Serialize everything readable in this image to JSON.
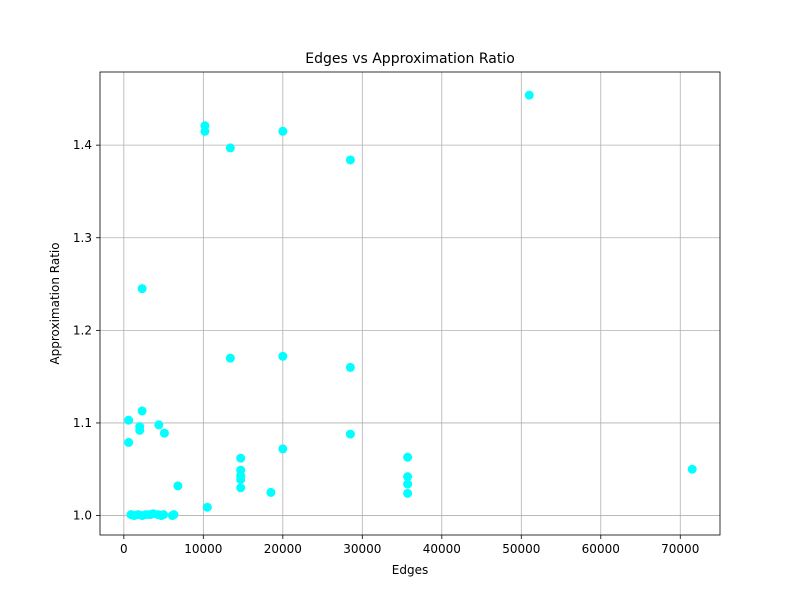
{
  "chart_data": {
    "type": "scatter",
    "title": "Edges vs Approximation Ratio",
    "xlabel": "Edges",
    "ylabel": "Approximation Ratio",
    "xlim": [
      -3000,
      75000
    ],
    "ylim": [
      0.979,
      1.479
    ],
    "xticks": [
      0,
      10000,
      20000,
      30000,
      40000,
      50000,
      60000,
      70000
    ],
    "yticks": [
      1.0,
      1.1,
      1.2,
      1.3,
      1.4
    ],
    "grid": true,
    "color": "#00ffff",
    "series": [
      {
        "x": [
          51000,
          10200,
          10200,
          20000,
          13400,
          28500,
          2300,
          13400,
          20000,
          28500,
          2300,
          600,
          4400,
          2000,
          2000,
          5100,
          600,
          28500,
          20000,
          35700,
          14700,
          14700,
          14700,
          14700,
          14700,
          35700,
          35700,
          35700,
          71500,
          6800,
          18500,
          10500,
          900,
          1300,
          1800,
          2300,
          2800,
          3300,
          3700,
          4300,
          4700,
          5000,
          6100,
          6300
        ],
        "y": [
          1.454,
          1.421,
          1.415,
          1.415,
          1.397,
          1.384,
          1.245,
          1.17,
          1.172,
          1.16,
          1.113,
          1.103,
          1.098,
          1.096,
          1.092,
          1.089,
          1.079,
          1.088,
          1.072,
          1.063,
          1.062,
          1.049,
          1.043,
          1.039,
          1.03,
          1.042,
          1.034,
          1.024,
          1.05,
          1.032,
          1.025,
          1.009,
          1.001,
          1.0,
          1.001,
          1.0,
          1.001,
          1.001,
          1.002,
          1.001,
          1.0,
          1.001,
          1.0,
          1.001
        ]
      }
    ]
  }
}
